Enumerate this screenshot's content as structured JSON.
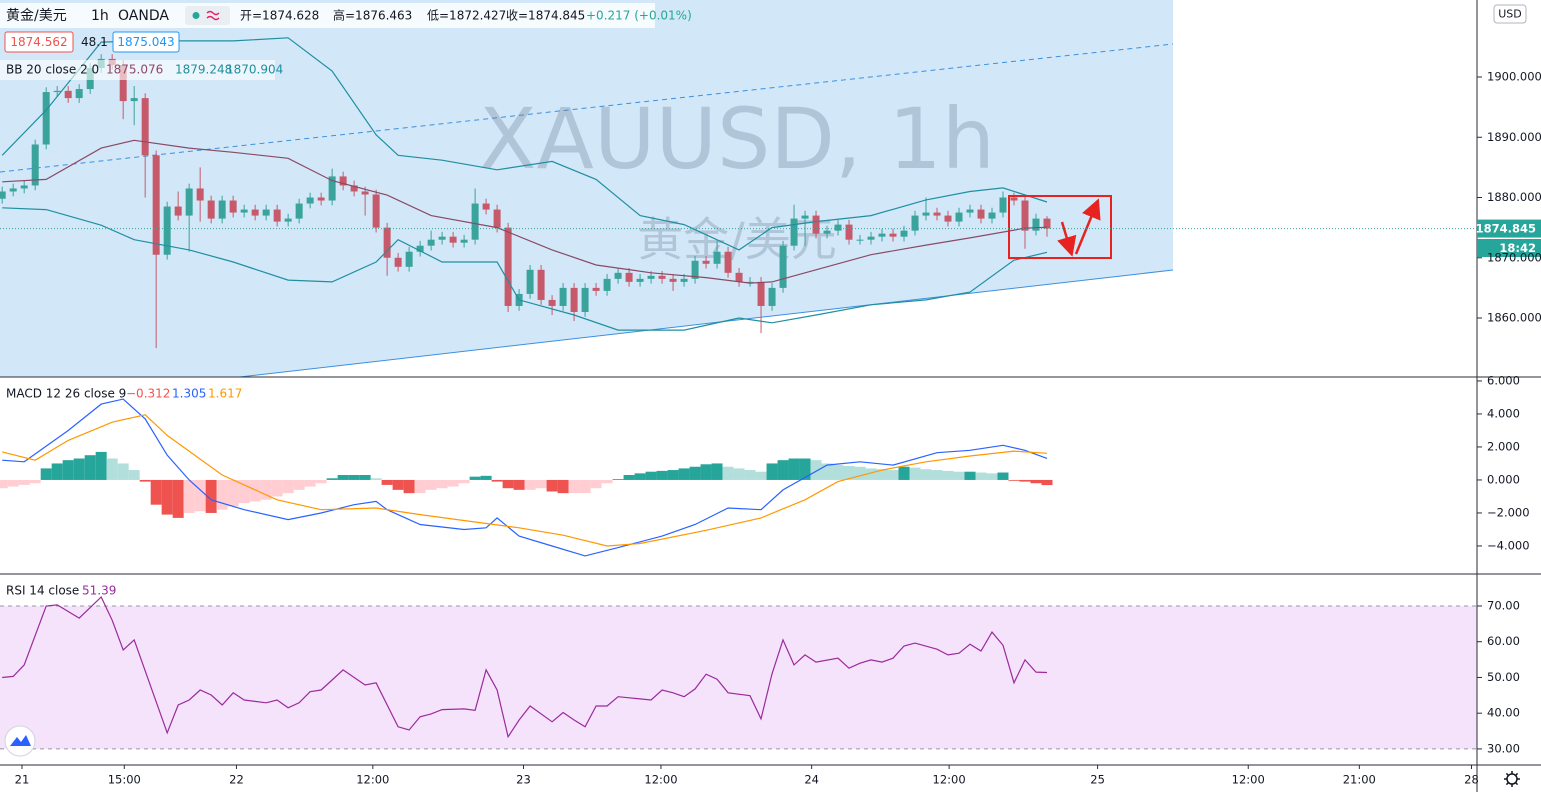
{
  "header": {
    "symbol": "黄金/美元",
    "interval": "1h",
    "source": "OANDA",
    "open": "开=1874.628",
    "high": "高=1876.463",
    "low": "低=1872.427",
    "close": "收=1874.845",
    "change": "+0.217 (+0.01%)",
    "bid": "1874.562",
    "spread": "48.1",
    "ask": "1875.043",
    "currency": "USD",
    "countdown": "18:42"
  },
  "chart_data": [
    {
      "type": "candlestick",
      "watermark": "XAUUSD, 1h",
      "watermark_sub": "黄金/美元",
      "legend": "BB 20 close 2 0",
      "xlim": [
        -0.2,
        134.1
      ],
      "xticks": [
        {
          "value": 1.8,
          "label": "21"
        },
        {
          "value": 11.1,
          "label": "15:00"
        },
        {
          "value": 21.3,
          "label": "22"
        },
        {
          "value": 33.7,
          "label": "12:00"
        },
        {
          "value": 47.4,
          "label": "23"
        },
        {
          "value": 59.9,
          "label": "12:00"
        },
        {
          "value": 73.6,
          "label": "24"
        },
        {
          "value": 86.1,
          "label": "12:00"
        },
        {
          "value": 99.6,
          "label": "25"
        },
        {
          "value": 113.3,
          "label": "12:00"
        },
        {
          "value": 123.4,
          "label": "21:00"
        },
        {
          "value": 133.6,
          "label": "28"
        }
      ],
      "ylim": [
        1850.21,
        1912.78
      ],
      "yticks": [
        {
          "value": 1860,
          "label": "1860.000"
        },
        {
          "value": 1870,
          "label": "1870.000"
        },
        {
          "value": 1880,
          "label": "1880.000"
        },
        {
          "value": 1890,
          "label": "1890.000"
        },
        {
          "value": 1900,
          "label": "1900.000"
        }
      ],
      "up_color": "#3aa39b",
      "down_color": "#c65a6b",
      "open": [
        1879.8,
        1881.0,
        1881.5,
        1882.0,
        1888.8,
        1897.5,
        1897.7,
        1896.5,
        1898.0,
        1901.5,
        1903.0,
        1902.0,
        1896.0,
        1896.5,
        1887.0,
        1870.5,
        1878.5,
        1877.0,
        1881.5,
        1879.5,
        1876.5,
        1879.5,
        1877.5,
        1878.0,
        1877.0,
        1878.0,
        1876.0,
        1876.5,
        1879.0,
        1880.0,
        1879.5,
        1883.5,
        1882.0,
        1881.0,
        1880.5,
        1875.0,
        1870.0,
        1868.5,
        1871.0,
        1872.0,
        1873.0,
        1873.5,
        1872.5,
        1873.0,
        1879.0,
        1878.0,
        1875.0,
        1862.0,
        1864.0,
        1868.0,
        1863.0,
        1862.0,
        1865.0,
        1861.0,
        1865.0,
        1864.5,
        1866.5,
        1867.5,
        1866.0,
        1866.5,
        1867.0,
        1866.5,
        1866.0,
        1866.5,
        1869.5,
        1869.0,
        1871.0,
        1867.5,
        1866.0,
        1866.0,
        1862.0,
        1865.0,
        1872.0,
        1876.5,
        1877.0,
        1874.0,
        1874.5,
        1875.5,
        1873.0,
        1873.0,
        1873.5,
        1874.0,
        1873.5,
        1874.5,
        1877.0,
        1877.5,
        1877.0,
        1876.0,
        1877.5,
        1878.0,
        1876.5,
        1877.5,
        1880.0,
        1879.5,
        1874.5,
        1876.5
      ],
      "high": [
        1881.8,
        1882.3,
        1882.8,
        1889.6,
        1898.3,
        1898.5,
        1898.5,
        1898.8,
        1902.3,
        1903.8,
        1903.8,
        1902.8,
        1898.5,
        1897.3,
        1887.8,
        1879.3,
        1881.0,
        1882.3,
        1885.0,
        1880.3,
        1880.3,
        1880.3,
        1878.8,
        1878.8,
        1878.8,
        1878.8,
        1877.3,
        1879.8,
        1880.8,
        1880.8,
        1884.8,
        1884.3,
        1882.8,
        1881.8,
        1881.3,
        1875.8,
        1870.8,
        1871.8,
        1872.8,
        1874.5,
        1874.3,
        1874.3,
        1873.8,
        1881.5,
        1879.8,
        1878.8,
        1875.8,
        1864.8,
        1868.8,
        1868.8,
        1863.8,
        1865.8,
        1865.8,
        1865.8,
        1865.8,
        1867.3,
        1868.3,
        1868.3,
        1867.3,
        1867.8,
        1867.8,
        1867.3,
        1867.3,
        1870.3,
        1870.3,
        1872.8,
        1871.8,
        1868.3,
        1866.8,
        1866.8,
        1865.8,
        1872.8,
        1878.8,
        1877.8,
        1877.8,
        1875.3,
        1876.3,
        1876.3,
        1873.8,
        1874.3,
        1874.8,
        1874.8,
        1875.3,
        1877.8,
        1880.0,
        1878.3,
        1877.8,
        1878.3,
        1878.8,
        1878.8,
        1878.3,
        1881.0,
        1880.8,
        1880.3,
        1877.3,
        1876.9
      ],
      "low": [
        1879.0,
        1880.2,
        1880.7,
        1881.2,
        1888.0,
        1896.7,
        1895.7,
        1895.7,
        1897.2,
        1900.7,
        1901.2,
        1893.0,
        1892.0,
        1880.0,
        1855.0,
        1869.7,
        1876.2,
        1871.0,
        1876.0,
        1875.7,
        1875.7,
        1876.7,
        1876.7,
        1876.2,
        1876.2,
        1875.2,
        1875.2,
        1875.7,
        1878.2,
        1878.7,
        1878.7,
        1881.2,
        1880.2,
        1877.0,
        1874.2,
        1867.0,
        1867.7,
        1867.7,
        1870.2,
        1871.2,
        1872.2,
        1871.7,
        1871.7,
        1872.2,
        1877.2,
        1874.2,
        1861.0,
        1861.2,
        1863.2,
        1862.2,
        1860.5,
        1861.2,
        1859.5,
        1860.2,
        1863.7,
        1863.7,
        1865.7,
        1865.2,
        1865.2,
        1865.7,
        1865.7,
        1864.5,
        1865.2,
        1865.7,
        1868.2,
        1868.2,
        1866.7,
        1865.2,
        1865.2,
        1857.5,
        1861.2,
        1864.2,
        1871.2,
        1872.0,
        1873.2,
        1873.2,
        1873.7,
        1872.2,
        1872.2,
        1872.2,
        1872.7,
        1872.7,
        1872.7,
        1873.7,
        1876.2,
        1876.2,
        1875.2,
        1875.2,
        1876.7,
        1875.7,
        1875.7,
        1876.7,
        1878.7,
        1871.5,
        1873.7,
        1873.5
      ],
      "close": [
        1881.0,
        1881.5,
        1882.0,
        1888.8,
        1897.5,
        1897.7,
        1896.5,
        1898.0,
        1901.5,
        1903.0,
        1902.0,
        1896.0,
        1896.5,
        1887.0,
        1870.5,
        1878.5,
        1877.0,
        1881.5,
        1879.5,
        1876.5,
        1879.5,
        1877.5,
        1878.0,
        1877.0,
        1878.0,
        1876.0,
        1876.5,
        1879.0,
        1880.0,
        1879.5,
        1883.5,
        1882.0,
        1881.0,
        1880.5,
        1875.0,
        1870.0,
        1868.5,
        1871.0,
        1872.0,
        1873.0,
        1873.5,
        1872.5,
        1873.0,
        1879.0,
        1878.0,
        1875.0,
        1862.0,
        1864.0,
        1868.0,
        1863.0,
        1862.0,
        1865.0,
        1861.0,
        1865.0,
        1864.5,
        1866.5,
        1867.5,
        1866.0,
        1866.5,
        1867.0,
        1866.5,
        1866.0,
        1866.5,
        1869.5,
        1869.0,
        1871.0,
        1867.5,
        1866.0,
        1866.0,
        1862.0,
        1865.0,
        1872.0,
        1876.5,
        1877.0,
        1874.0,
        1874.5,
        1875.5,
        1873.0,
        1873.0,
        1873.5,
        1874.0,
        1873.5,
        1874.5,
        1877.0,
        1877.5,
        1877.0,
        1876.0,
        1877.5,
        1878.0,
        1876.5,
        1877.5,
        1880.0,
        1879.5,
        1874.5,
        1876.5,
        1874.845
      ],
      "series": [
        {
          "color": "#8a4a66",
          "x": [
            0,
            4,
            9,
            12,
            17,
            21,
            26,
            30,
            35,
            39,
            45,
            50,
            54,
            59,
            64,
            68,
            70,
            74,
            79,
            84,
            88,
            93,
            95
          ],
          "values": [
            1882.6,
            1883,
            1888.2,
            1889.5,
            1888.2,
            1887.5,
            1886.5,
            1882.8,
            1880.4,
            1877,
            1875,
            1871.3,
            1868.8,
            1867.5,
            1866.7,
            1865.8,
            1866,
            1868,
            1870.5,
            1872.1,
            1873.3,
            1874.9,
            1875.076
          ]
        },
        {
          "color": "#1f8fa0",
          "x": [
            0,
            4,
            9,
            13,
            21,
            26,
            30,
            34,
            36,
            40,
            45,
            50,
            54,
            58,
            62,
            67,
            70,
            74,
            79,
            84,
            88,
            91,
            95
          ],
          "values": [
            1887,
            1894.5,
            1905.8,
            1906,
            1906,
            1906.5,
            1901,
            1890.4,
            1887,
            1886.2,
            1884.6,
            1886,
            1883,
            1877,
            1875.5,
            1871.3,
            1875,
            1876,
            1877,
            1879.6,
            1881,
            1881.6,
            1879.248
          ]
        },
        {
          "color": "#1f8fa0",
          "x": [
            0,
            4,
            9,
            12,
            17,
            21,
            26,
            30,
            34,
            36,
            40,
            45,
            47,
            52,
            56,
            62,
            67,
            70,
            74,
            79,
            84,
            88,
            92,
            95
          ],
          "values": [
            1878.3,
            1878,
            1875.4,
            1873,
            1871.3,
            1869.3,
            1866.3,
            1866,
            1869.3,
            1873,
            1869.3,
            1869.3,
            1863,
            1860.5,
            1858,
            1858,
            1860,
            1859.2,
            1860.5,
            1862.2,
            1863,
            1864.3,
            1869.6,
            1870.904
          ]
        }
      ]
    },
    {
      "type": "line",
      "legend": "MACD 12 26 close 9",
      "ylim": [
        -5.7,
        6.24
      ],
      "yticks": [
        {
          "value": 6,
          "label": "6.000"
        },
        {
          "value": 4,
          "label": "4.000"
        },
        {
          "value": 2,
          "label": "2.000"
        },
        {
          "value": 0,
          "label": "0.000"
        },
        {
          "value": -2,
          "label": "−2.000"
        },
        {
          "value": -4,
          "label": "−4.000"
        }
      ],
      "histogram": {
        "colors": [
          "#26a69a",
          "#b2dfdb",
          "#ef5350",
          "#ffcdd2"
        ],
        "last_label": "−0.312",
        "values": [
          -0.5,
          -0.4,
          -0.3,
          -0.2,
          0.7,
          1.0,
          1.2,
          1.3,
          1.5,
          1.7,
          1.3,
          1.0,
          0.6,
          -0.1,
          -1.5,
          -2.1,
          -2.3,
          -2.0,
          -1.9,
          -2.0,
          -1.8,
          -1.6,
          -1.4,
          -1.3,
          -1.2,
          -1.0,
          -0.8,
          -0.6,
          -0.4,
          -0.2,
          0.1,
          0.3,
          0.3,
          0.3,
          0.1,
          -0.3,
          -0.6,
          -0.8,
          -0.8,
          -0.6,
          -0.5,
          -0.4,
          -0.2,
          0.2,
          0.25,
          -0.1,
          -0.5,
          -0.6,
          -0.6,
          -0.5,
          -0.7,
          -0.8,
          -0.8,
          -0.8,
          -0.5,
          -0.2,
          0.05,
          0.3,
          0.4,
          0.5,
          0.55,
          0.6,
          0.7,
          0.8,
          0.95,
          1.0,
          0.8,
          0.7,
          0.6,
          0.5,
          1.0,
          1.2,
          1.3,
          1.3,
          1.2,
          1.0,
          0.9,
          0.85,
          0.8,
          0.7,
          0.65,
          0.6,
          0.8,
          0.75,
          0.65,
          0.6,
          0.55,
          0.5,
          0.5,
          0.45,
          0.4,
          0.45,
          -0.05,
          -0.1,
          -0.2,
          -0.312
        ]
      },
      "series": [
        {
          "color": "#2962ff",
          "x": [
            0,
            2,
            6,
            9,
            11,
            13,
            15,
            17,
            19,
            22,
            26,
            29,
            32,
            34,
            35,
            38,
            42,
            44,
            45,
            47,
            50,
            53,
            56,
            60,
            63,
            66,
            69,
            71,
            75,
            78,
            81,
            85,
            88,
            91,
            93,
            95
          ],
          "values": [
            1.2,
            1.1,
            3.0,
            4.6,
            4.9,
            3.7,
            1.5,
            0,
            -1.2,
            -1.8,
            -2.4,
            -2.0,
            -1.5,
            -1.3,
            -1.8,
            -2.7,
            -3.0,
            -2.9,
            -2.3,
            -3.4,
            -4.0,
            -4.6,
            -4.1,
            -3.4,
            -2.7,
            -1.7,
            -1.8,
            -0.6,
            0.9,
            1.1,
            0.9,
            1.65,
            1.8,
            2.1,
            1.8,
            1.305
          ]
        },
        {
          "color": "#ff9800",
          "x": [
            0,
            3,
            6,
            10,
            13,
            15,
            20,
            25,
            29,
            34,
            38,
            43,
            47,
            51,
            55,
            58,
            64,
            69,
            73,
            76,
            80,
            84,
            88,
            92,
            95
          ],
          "values": [
            1.7,
            1.2,
            2.4,
            3.5,
            3.95,
            2.7,
            0.3,
            -1.2,
            -1.8,
            -1.7,
            -2.1,
            -2.55,
            -2.9,
            -3.35,
            -4.0,
            -3.85,
            -3.05,
            -2.3,
            -1.2,
            -0.1,
            0.6,
            1.1,
            1.45,
            1.75,
            1.617
          ]
        }
      ]
    },
    {
      "type": "line",
      "legend": "RSI 14 close",
      "ylim": [
        25.5,
        78.95
      ],
      "yticks": [
        {
          "value": 30,
          "label": "30.00"
        },
        {
          "value": 40,
          "label": "40.00"
        },
        {
          "value": 50,
          "label": "50.00"
        },
        {
          "value": 60,
          "label": "60.00"
        },
        {
          "value": 70,
          "label": "70.00"
        }
      ],
      "band": [
        30,
        70
      ],
      "band_color": "#f4e3fb",
      "series": [
        {
          "color": "#9c2a9c",
          "x": [
            0,
            1,
            2,
            4,
            5,
            7,
            9,
            10,
            11,
            12,
            15,
            16,
            17,
            18,
            19,
            20,
            21,
            22,
            24,
            25,
            26,
            27,
            28,
            29,
            30,
            31,
            33,
            34,
            36,
            37,
            38,
            39,
            40,
            42,
            43,
            44,
            45,
            46,
            47,
            48,
            50,
            51,
            52,
            53,
            54,
            55,
            56,
            57,
            59,
            60,
            61,
            62,
            63,
            64,
            65,
            66,
            68,
            69,
            70,
            71,
            72,
            73,
            74,
            76,
            77,
            78,
            79,
            80,
            81,
            82,
            83,
            85,
            86,
            87,
            88,
            89,
            90,
            91,
            92,
            93,
            94,
            95
          ],
          "values": [
            50,
            50.3,
            53.5,
            70,
            70.3,
            66.6,
            72.5,
            66,
            57.7,
            60.5,
            34.5,
            42.3,
            43.7,
            46.5,
            45.1,
            42.3,
            45.7,
            43.7,
            42.9,
            43.7,
            41.5,
            42.9,
            46,
            46.5,
            49.3,
            52.1,
            47.9,
            48.5,
            36.2,
            35.3,
            39,
            39.8,
            41,
            41.2,
            40.8,
            52.1,
            46.5,
            33.4,
            38.1,
            42,
            37.6,
            40.2,
            38.1,
            36.2,
            42,
            42,
            44.6,
            44.3,
            43.7,
            46.5,
            45.7,
            44.6,
            46.8,
            50.9,
            49.5,
            45.7,
            44.9,
            38.4,
            51,
            60.5,
            53.5,
            56.3,
            54.3,
            55.4,
            52.6,
            54,
            54.9,
            54.3,
            55.4,
            58.8,
            59.6,
            57.9,
            56.3,
            56.8,
            59.3,
            57.4,
            62.7,
            59,
            48.5,
            54.9,
            51.5,
            51.39
          ]
        }
      ]
    }
  ]
}
